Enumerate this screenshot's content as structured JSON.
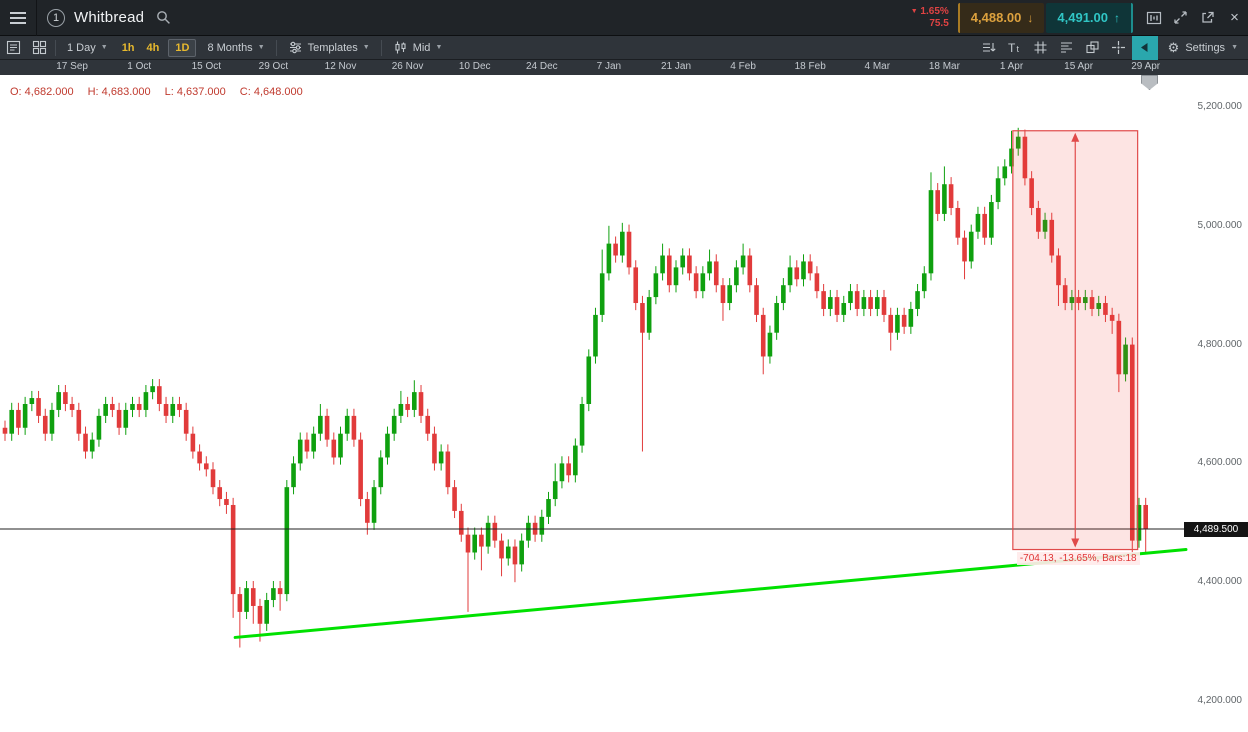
{
  "window": {
    "badge": "1",
    "title": "Whitbread",
    "change_percent": "1.65%",
    "change_value": "75.5",
    "sell_price": "4,488.00",
    "buy_price": "4,491.00"
  },
  "toolbar": {
    "period_label": "1 Day",
    "timeframes": [
      "1h",
      "4h",
      "1D"
    ],
    "range_label": "8 Months",
    "templates_label": "Templates",
    "price_type_label": "Mid",
    "settings_label": "Settings"
  },
  "icons": {
    "caret": "▼",
    "change_down": "▼",
    "sell_arrow": "↓",
    "buy_arrow": "↑",
    "close": "×",
    "gear": "⚙"
  },
  "ohlc": {
    "open": "O: 4,682.000",
    "high": "H: 4,683.000",
    "low": "L: 4,637.000",
    "close": "C: 4,648.000"
  },
  "chart_data": {
    "type": "candlestick",
    "instrument": "Whitbread",
    "timeframe": "1 Day",
    "range": "8 Months",
    "x_labels": [
      "17 Sep",
      "1 Oct",
      "15 Oct",
      "29 Oct",
      "12 Nov",
      "26 Nov",
      "10 Dec",
      "24 Dec",
      "7 Jan",
      "21 Jan",
      "4 Feb",
      "18 Feb",
      "4 Mar",
      "18 Mar",
      "1 Apr",
      "15 Apr",
      "29 Apr"
    ],
    "x_label_first_bar": 10,
    "x_label_step_bars": 10,
    "y_ticks": [
      "5,200.000",
      "5,000.000",
      "4,800.000",
      "4,600.000",
      "4,400.000",
      "4,200.000"
    ],
    "y_values": [
      5200,
      5000,
      4800,
      4600,
      4400,
      4200
    ],
    "ylim": [
      4150,
      5280
    ],
    "current_price": 4489.5,
    "current_price_label": "4,489.500",
    "up_color": "#0fa00f",
    "down_color": "#e13b3b",
    "trendline": {
      "from_bar": 34.3,
      "from_price": 4307,
      "to_bar": 176,
      "to_price": 4455,
      "color": "#00e100"
    },
    "measurement": {
      "label": "-704.13, -13.65%, Bars:18",
      "from_bar": 150.2,
      "to_bar": 168.8,
      "price_top": 5160,
      "price_bottom": 4455,
      "color": "#e04a4a",
      "fill": "rgba(244,67,54,0.14)"
    },
    "candles": [
      [
        4660,
        4672,
        4638,
        4650
      ],
      [
        4650,
        4702,
        4638,
        4690
      ],
      [
        4690,
        4702,
        4648,
        4660
      ],
      [
        4660,
        4712,
        4648,
        4700
      ],
      [
        4700,
        4722,
        4688,
        4710
      ],
      [
        4710,
        4722,
        4668,
        4680
      ],
      [
        4680,
        4692,
        4638,
        4650
      ],
      [
        4650,
        4702,
        4638,
        4690
      ],
      [
        4690,
        4732,
        4678,
        4720
      ],
      [
        4720,
        4732,
        4688,
        4700
      ],
      [
        4700,
        4712,
        4678,
        4690
      ],
      [
        4690,
        4702,
        4638,
        4650
      ],
      [
        4650,
        4662,
        4608,
        4620
      ],
      [
        4620,
        4652,
        4608,
        4640
      ],
      [
        4640,
        4692,
        4628,
        4680
      ],
      [
        4680,
        4712,
        4668,
        4700
      ],
      [
        4700,
        4712,
        4678,
        4690
      ],
      [
        4690,
        4702,
        4648,
        4660
      ],
      [
        4660,
        4702,
        4648,
        4690
      ],
      [
        4690,
        4712,
        4678,
        4700
      ],
      [
        4700,
        4712,
        4678,
        4690
      ],
      [
        4690,
        4732,
        4678,
        4720
      ],
      [
        4720,
        4742,
        4708,
        4730
      ],
      [
        4730,
        4742,
        4688,
        4700
      ],
      [
        4700,
        4712,
        4668,
        4680
      ],
      [
        4680,
        4712,
        4668,
        4700
      ],
      [
        4700,
        4712,
        4678,
        4690
      ],
      [
        4690,
        4702,
        4638,
        4650
      ],
      [
        4650,
        4662,
        4608,
        4620
      ],
      [
        4620,
        4632,
        4588,
        4600
      ],
      [
        4600,
        4612,
        4578,
        4590
      ],
      [
        4590,
        4602,
        4548,
        4560
      ],
      [
        4560,
        4572,
        4528,
        4540
      ],
      [
        4540,
        4552,
        4515,
        4530
      ],
      [
        4530,
        4542,
        4340,
        4380
      ],
      [
        4380,
        4392,
        4290,
        4350
      ],
      [
        4350,
        4402,
        4338,
        4390
      ],
      [
        4390,
        4402,
        4330,
        4360
      ],
      [
        4360,
        4372,
        4300,
        4330
      ],
      [
        4330,
        4382,
        4318,
        4370
      ],
      [
        4370,
        4402,
        4358,
        4390
      ],
      [
        4390,
        4402,
        4352,
        4380
      ],
      [
        4380,
        4572,
        4368,
        4560
      ],
      [
        4560,
        4612,
        4548,
        4600
      ],
      [
        4600,
        4652,
        4588,
        4640
      ],
      [
        4640,
        4652,
        4608,
        4620
      ],
      [
        4620,
        4662,
        4608,
        4650
      ],
      [
        4650,
        4700,
        4638,
        4680
      ],
      [
        4680,
        4692,
        4628,
        4640
      ],
      [
        4640,
        4652,
        4598,
        4610
      ],
      [
        4610,
        4662,
        4598,
        4650
      ],
      [
        4650,
        4692,
        4638,
        4680
      ],
      [
        4680,
        4692,
        4628,
        4640
      ],
      [
        4640,
        4652,
        4528,
        4540
      ],
      [
        4540,
        4552,
        4480,
        4500
      ],
      [
        4500,
        4572,
        4488,
        4560
      ],
      [
        4560,
        4622,
        4548,
        4610
      ],
      [
        4610,
        4662,
        4598,
        4650
      ],
      [
        4650,
        4692,
        4638,
        4680
      ],
      [
        4680,
        4722,
        4668,
        4700
      ],
      [
        4700,
        4712,
        4678,
        4690
      ],
      [
        4690,
        4740,
        4678,
        4720
      ],
      [
        4720,
        4732,
        4668,
        4680
      ],
      [
        4680,
        4692,
        4638,
        4650
      ],
      [
        4650,
        4662,
        4588,
        4600
      ],
      [
        4600,
        4632,
        4588,
        4620
      ],
      [
        4620,
        4632,
        4548,
        4560
      ],
      [
        4560,
        4572,
        4508,
        4520
      ],
      [
        4520,
        4532,
        4468,
        4480
      ],
      [
        4480,
        4492,
        4350,
        4450
      ],
      [
        4450,
        4492,
        4438,
        4480
      ],
      [
        4480,
        4492,
        4420,
        4460
      ],
      [
        4460,
        4512,
        4448,
        4500
      ],
      [
        4500,
        4512,
        4458,
        4470
      ],
      [
        4470,
        4482,
        4410,
        4440
      ],
      [
        4440,
        4472,
        4428,
        4460
      ],
      [
        4460,
        4472,
        4400,
        4430
      ],
      [
        4430,
        4482,
        4418,
        4470
      ],
      [
        4470,
        4512,
        4458,
        4500
      ],
      [
        4500,
        4512,
        4468,
        4480
      ],
      [
        4480,
        4522,
        4468,
        4510
      ],
      [
        4510,
        4552,
        4498,
        4540
      ],
      [
        4540,
        4600,
        4528,
        4570
      ],
      [
        4570,
        4612,
        4558,
        4600
      ],
      [
        4600,
        4612,
        4568,
        4580
      ],
      [
        4580,
        4642,
        4568,
        4630
      ],
      [
        4630,
        4712,
        4618,
        4700
      ],
      [
        4700,
        4792,
        4688,
        4780
      ],
      [
        4780,
        4862,
        4768,
        4850
      ],
      [
        4850,
        4960,
        4838,
        4920
      ],
      [
        4920,
        5000,
        4908,
        4970
      ],
      [
        4970,
        4982,
        4938,
        4950
      ],
      [
        4950,
        5005,
        4938,
        4990
      ],
      [
        4990,
        5002,
        4918,
        4930
      ],
      [
        4930,
        4942,
        4858,
        4870
      ],
      [
        4870,
        4882,
        4620,
        4820
      ],
      [
        4820,
        4892,
        4808,
        4880
      ],
      [
        4880,
        4932,
        4868,
        4920
      ],
      [
        4920,
        4970,
        4908,
        4950
      ],
      [
        4950,
        4962,
        4888,
        4900
      ],
      [
        4900,
        4942,
        4888,
        4930
      ],
      [
        4930,
        4962,
        4918,
        4950
      ],
      [
        4950,
        4962,
        4908,
        4920
      ],
      [
        4920,
        4932,
        4878,
        4890
      ],
      [
        4890,
        4932,
        4878,
        4920
      ],
      [
        4920,
        4960,
        4908,
        4940
      ],
      [
        4940,
        4952,
        4888,
        4900
      ],
      [
        4900,
        4912,
        4840,
        4870
      ],
      [
        4870,
        4912,
        4858,
        4900
      ],
      [
        4900,
        4942,
        4888,
        4930
      ],
      [
        4930,
        4970,
        4918,
        4950
      ],
      [
        4950,
        4962,
        4888,
        4900
      ],
      [
        4900,
        4912,
        4838,
        4850
      ],
      [
        4850,
        4862,
        4750,
        4780
      ],
      [
        4780,
        4832,
        4768,
        4820
      ],
      [
        4820,
        4882,
        4808,
        4870
      ],
      [
        4870,
        4912,
        4858,
        4900
      ],
      [
        4900,
        4950,
        4888,
        4930
      ],
      [
        4930,
        4942,
        4898,
        4910
      ],
      [
        4910,
        4952,
        4898,
        4940
      ],
      [
        4940,
        4952,
        4908,
        4920
      ],
      [
        4920,
        4932,
        4878,
        4890
      ],
      [
        4890,
        4902,
        4848,
        4860
      ],
      [
        4860,
        4892,
        4848,
        4880
      ],
      [
        4880,
        4892,
        4838,
        4850
      ],
      [
        4850,
        4882,
        4838,
        4870
      ],
      [
        4870,
        4902,
        4858,
        4890
      ],
      [
        4890,
        4902,
        4848,
        4860
      ],
      [
        4860,
        4892,
        4848,
        4880
      ],
      [
        4880,
        4892,
        4848,
        4860
      ],
      [
        4860,
        4892,
        4848,
        4880
      ],
      [
        4880,
        4892,
        4838,
        4850
      ],
      [
        4850,
        4862,
        4790,
        4820
      ],
      [
        4820,
        4862,
        4808,
        4850
      ],
      [
        4850,
        4862,
        4818,
        4830
      ],
      [
        4830,
        4872,
        4818,
        4860
      ],
      [
        4860,
        4902,
        4848,
        4890
      ],
      [
        4890,
        4932,
        4878,
        4920
      ],
      [
        4920,
        5090,
        4908,
        5060
      ],
      [
        5060,
        5072,
        5008,
        5020
      ],
      [
        5020,
        5100,
        5008,
        5070
      ],
      [
        5070,
        5082,
        5018,
        5030
      ],
      [
        5030,
        5042,
        4968,
        4980
      ],
      [
        4980,
        4992,
        4910,
        4940
      ],
      [
        4940,
        5002,
        4928,
        4990
      ],
      [
        4990,
        5032,
        4978,
        5020
      ],
      [
        5020,
        5032,
        4968,
        4980
      ],
      [
        4980,
        5052,
        4968,
        5040
      ],
      [
        5040,
        5100,
        5028,
        5080
      ],
      [
        5080,
        5112,
        5068,
        5100
      ],
      [
        5100,
        5160,
        5088,
        5130
      ],
      [
        5130,
        5165,
        5118,
        5150
      ],
      [
        5150,
        5162,
        5068,
        5080
      ],
      [
        5080,
        5092,
        5018,
        5030
      ],
      [
        5030,
        5042,
        4978,
        4990
      ],
      [
        4990,
        5022,
        4978,
        5010
      ],
      [
        5010,
        5022,
        4938,
        4950
      ],
      [
        4950,
        4962,
        4865,
        4900
      ],
      [
        4900,
        4912,
        4858,
        4870
      ],
      [
        4870,
        4892,
        4858,
        4880
      ],
      [
        4880,
        4892,
        4858,
        4870
      ],
      [
        4870,
        4892,
        4858,
        4880
      ],
      [
        4880,
        4892,
        4848,
        4860
      ],
      [
        4860,
        4882,
        4848,
        4870
      ],
      [
        4870,
        4882,
        4838,
        4850
      ],
      [
        4850,
        4862,
        4818,
        4840
      ],
      [
        4840,
        4852,
        4720,
        4750
      ],
      [
        4750,
        4812,
        4738,
        4800
      ],
      [
        4800,
        4812,
        4440,
        4470
      ],
      [
        4470,
        4542,
        4458,
        4530
      ],
      [
        4530,
        4542,
        4450,
        4489.5
      ]
    ]
  }
}
